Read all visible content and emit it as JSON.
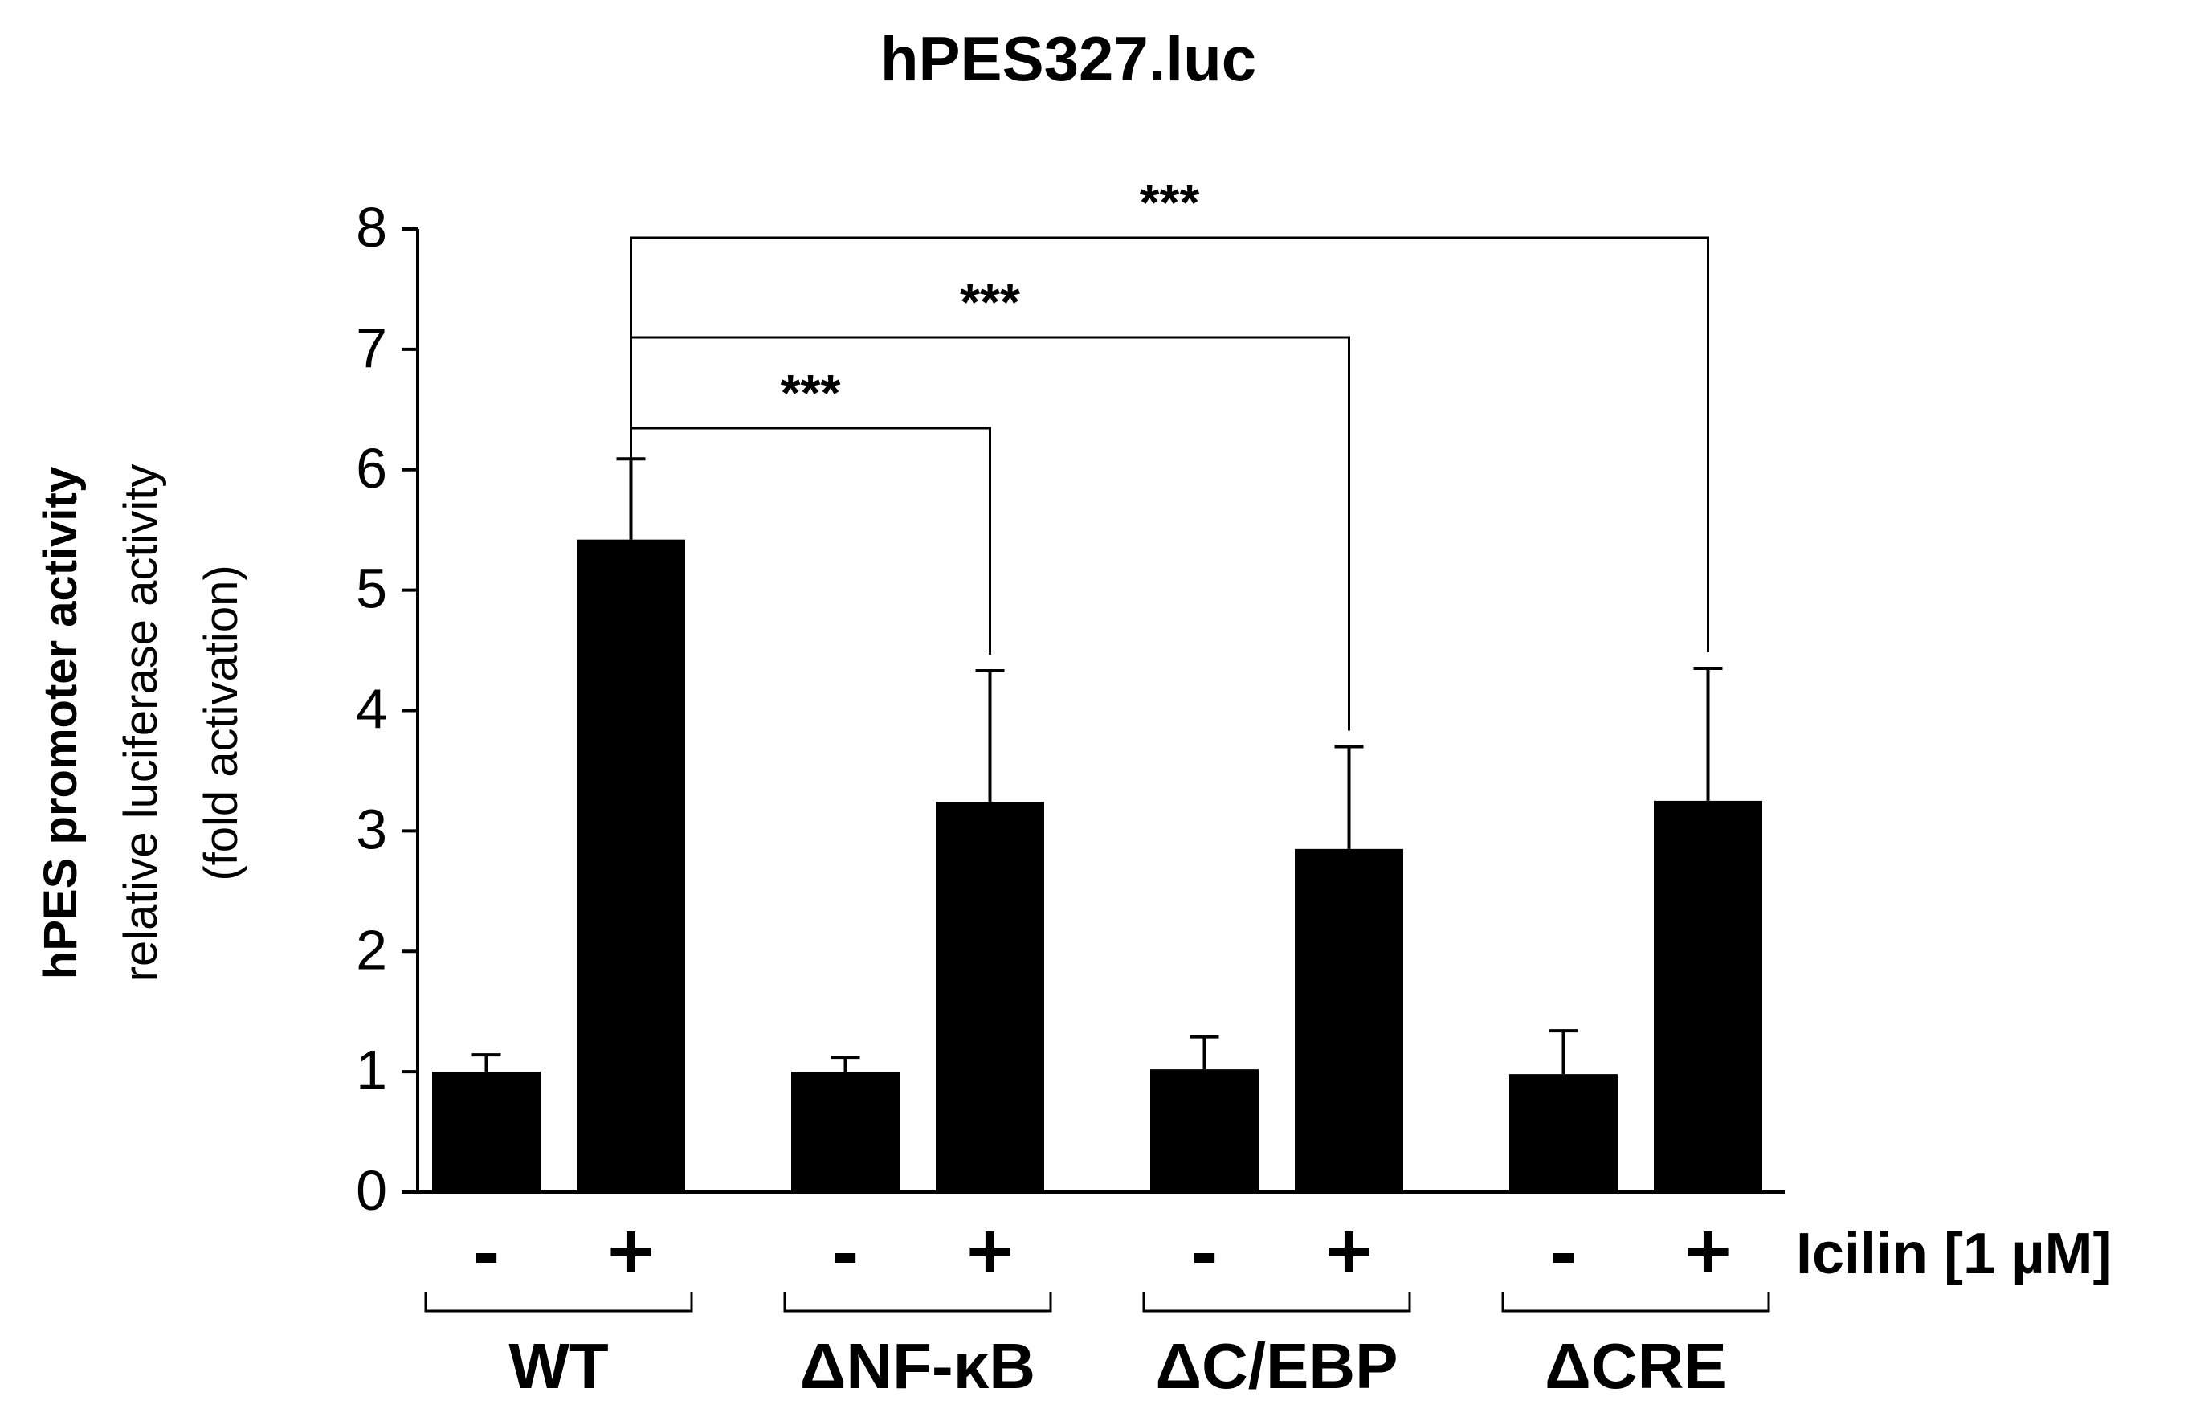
{
  "chart_data": {
    "type": "bar",
    "title": "hPES327.luc",
    "ylabel_bold": "hPES  promoter activity",
    "ylabel_line2": "relative luciferase activity",
    "ylabel_line3": "(fold activation)",
    "ylim": [
      0,
      8
    ],
    "yticks": [
      "0",
      "1",
      "2",
      "3",
      "4",
      "5",
      "6",
      "7",
      "8"
    ],
    "grid": false,
    "treatment_label": "Icilin [1 µM]",
    "groups": [
      {
        "name": "WT",
        "conditions": [
          "-",
          "+"
        ],
        "values": [
          1.0,
          5.42
        ],
        "errors": [
          0.14,
          0.67
        ]
      },
      {
        "name": "ΔNF-κB",
        "conditions": [
          "-",
          "+"
        ],
        "values": [
          1.0,
          3.24
        ],
        "errors": [
          0.12,
          1.09
        ]
      },
      {
        "name": "ΔC/EBP",
        "conditions": [
          "-",
          "+"
        ],
        "values": [
          1.02,
          2.85
        ],
        "errors": [
          0.27,
          0.85
        ]
      },
      {
        "name": "ΔCRE",
        "conditions": [
          "-",
          "+"
        ],
        "values": [
          0.98,
          3.25
        ],
        "errors": [
          0.36,
          1.1
        ]
      }
    ],
    "significance": [
      {
        "from_group": "WT",
        "to_group": "ΔNF-κB",
        "label": "***"
      },
      {
        "from_group": "WT",
        "to_group": "ΔC/EBP",
        "label": "***"
      },
      {
        "from_group": "WT",
        "to_group": "ΔCRE",
        "label": "***"
      }
    ],
    "colors": {
      "bars": "#000000",
      "axes": "#000000",
      "background": "#ffffff"
    }
  }
}
